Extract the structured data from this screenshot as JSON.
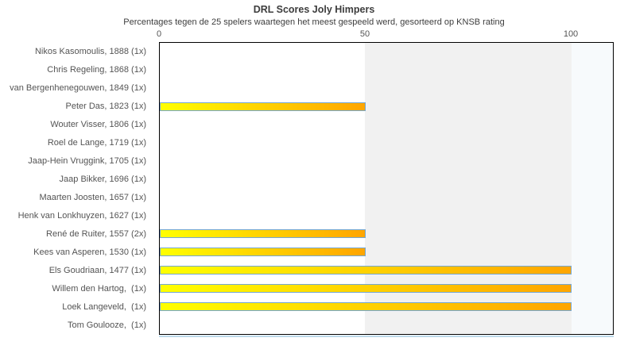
{
  "header": {
    "title": "DRL Scores Joly Himpers",
    "subtitle": "Percentages tegen de 25 spelers waartegen het meest gespeeld werd, gesorteerd op KNSB rating"
  },
  "colors": {
    "bar_gradient_start": "#ffff00",
    "bar_gradient_end": "#ffa500",
    "bar_border": "#74a7d3",
    "band_mid": "#f1f1f1",
    "band_right": "#f7fafc",
    "text": "#545454",
    "title_text": "#3d3d3d"
  },
  "chart_data": {
    "type": "bar",
    "orientation": "horizontal",
    "title": "DRL Scores Joly Himpers",
    "subtitle": "Percentages tegen de 25 spelers waartegen het meest gespeeld werd, gesorteerd op KNSB rating",
    "xlabel": "",
    "ylabel": "",
    "xlim": [
      0,
      110
    ],
    "xticks": [
      0,
      50,
      100
    ],
    "grid": false,
    "legend": null,
    "categories": [
      "Nikos Kasomoulis, 1888 (1x)",
      "Chris Regeling, 1868 (1x)",
      "van Bergenhenegouwen, 1849 (1x)",
      "Peter Das, 1823 (1x)",
      "Wouter Visser, 1806 (1x)",
      "Roel de Lange, 1719 (1x)",
      "Jaap-Hein Vruggink, 1705 (1x)",
      "Jaap Bikker, 1696 (1x)",
      "Maarten Joosten, 1657 (1x)",
      "Henk van Lonkhuyzen, 1627 (1x)",
      "René de Ruiter, 1557 (2x)",
      "Kees van Asperen, 1530 (1x)",
      "Els Goudriaan, 1477 (1x)",
      "Willem den Hartog,  (1x)",
      "Loek Langeveld,  (1x)",
      "Tom Goulooze,  (1x)"
    ],
    "values": [
      0,
      0,
      0,
      50,
      0,
      0,
      0,
      0,
      0,
      0,
      50,
      50,
      100,
      100,
      100,
      0
    ]
  }
}
